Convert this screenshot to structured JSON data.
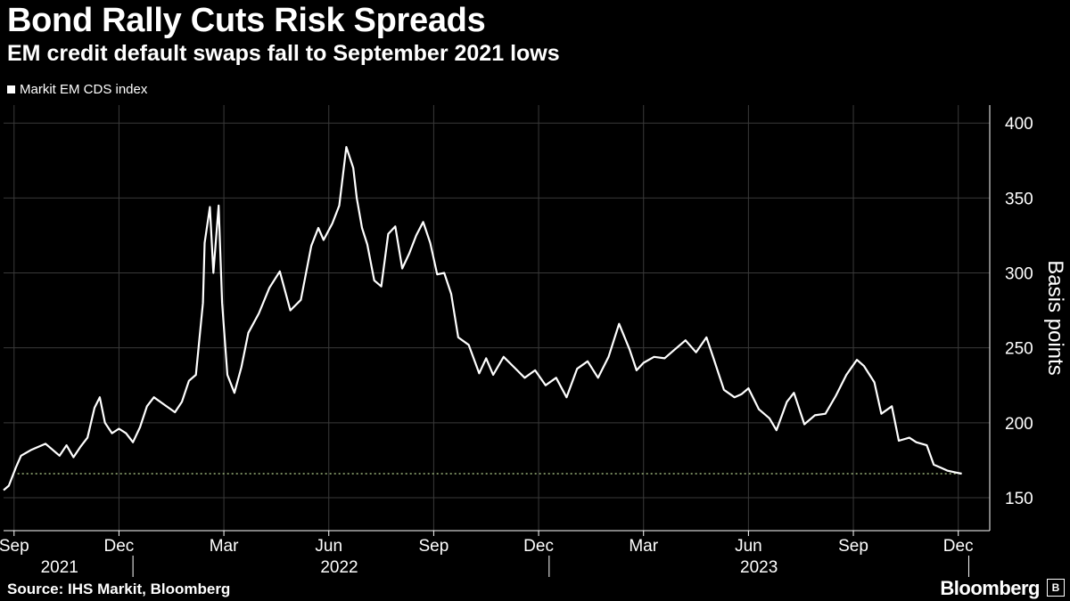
{
  "chart_data": {
    "type": "line",
    "title": "Bond Rally Cuts Risk Spreads",
    "subtitle": "EM credit default swaps fall to September 2021 lows",
    "legend": [
      "Markit EM CDS index"
    ],
    "ylabel": "Basis points",
    "ylim": [
      128,
      412
    ],
    "yticks": [
      150,
      200,
      250,
      300,
      350,
      400
    ],
    "xlim": [
      0,
      28.2
    ],
    "xticks": [
      {
        "x": 0.3,
        "label": "Sep"
      },
      {
        "x": 3.3,
        "label": "Dec"
      },
      {
        "x": 6.3,
        "label": "Mar"
      },
      {
        "x": 9.3,
        "label": "Jun"
      },
      {
        "x": 12.3,
        "label": "Sep"
      },
      {
        "x": 15.3,
        "label": "Dec"
      },
      {
        "x": 18.3,
        "label": "Mar"
      },
      {
        "x": 21.3,
        "label": "Jun"
      },
      {
        "x": 24.3,
        "label": "Sep"
      },
      {
        "x": 27.3,
        "label": "Dec"
      }
    ],
    "years": [
      {
        "center": 1.6,
        "label": "2021"
      },
      {
        "center": 9.6,
        "label": "2022"
      },
      {
        "center": 21.6,
        "label": "2023"
      }
    ],
    "year_separators": [
      3.7,
      15.6,
      27.6
    ],
    "reference_line": {
      "value": 166,
      "style": "dotted"
    },
    "series": [
      {
        "name": "Markit EM CDS index",
        "x": [
          0,
          0.15,
          0.35,
          0.5,
          0.8,
          1.0,
          1.2,
          1.4,
          1.6,
          1.8,
          2.0,
          2.2,
          2.4,
          2.6,
          2.75,
          2.9,
          3.1,
          3.3,
          3.5,
          3.7,
          3.9,
          4.1,
          4.3,
          4.6,
          4.9,
          5.1,
          5.3,
          5.5,
          5.7,
          5.75,
          5.9,
          6.0,
          6.15,
          6.25,
          6.4,
          6.6,
          6.8,
          7.0,
          7.3,
          7.6,
          7.9,
          8.2,
          8.5,
          8.8,
          9.0,
          9.15,
          9.4,
          9.6,
          9.8,
          10.0,
          10.1,
          10.25,
          10.4,
          10.6,
          10.8,
          11.0,
          11.2,
          11.4,
          11.6,
          11.8,
          12.0,
          12.2,
          12.4,
          12.6,
          12.8,
          13.0,
          13.3,
          13.6,
          13.8,
          14.0,
          14.3,
          14.6,
          14.9,
          15.2,
          15.5,
          15.8,
          16.1,
          16.4,
          16.7,
          17.0,
          17.3,
          17.6,
          17.9,
          18.1,
          18.3,
          18.6,
          18.9,
          19.2,
          19.5,
          19.8,
          20.1,
          20.3,
          20.6,
          20.9,
          21.1,
          21.3,
          21.6,
          21.9,
          22.1,
          22.4,
          22.6,
          22.9,
          23.2,
          23.5,
          23.8,
          24.1,
          24.4,
          24.6,
          24.9,
          25.1,
          25.4,
          25.6,
          25.9,
          26.1,
          26.4,
          26.6,
          26.8,
          27.0,
          27.2,
          27.4
        ],
        "values": [
          155,
          158,
          170,
          178,
          182,
          184,
          186,
          182,
          178,
          185,
          177,
          184,
          190,
          210,
          217,
          200,
          193,
          196,
          193,
          187,
          197,
          211,
          217,
          212,
          207,
          214,
          228,
          232,
          280,
          320,
          344,
          300,
          345,
          280,
          232,
          220,
          237,
          260,
          273,
          290,
          301,
          275,
          282,
          318,
          330,
          322,
          333,
          345,
          384,
          370,
          350,
          330,
          319,
          295,
          291,
          326,
          331,
          303,
          313,
          325,
          334,
          320,
          299,
          300,
          286,
          257,
          252,
          233,
          243,
          232,
          244,
          237,
          230,
          235,
          225,
          230,
          217,
          236,
          241,
          230,
          244,
          266,
          249,
          235,
          240,
          244,
          243,
          249,
          255,
          247,
          257,
          243,
          222,
          217,
          219,
          223,
          209,
          203,
          195,
          214,
          220,
          199,
          205,
          206,
          218,
          232,
          242,
          238,
          227,
          206,
          211,
          188,
          190,
          187,
          185,
          172,
          170,
          168,
          167,
          166
        ]
      }
    ]
  },
  "footer": {
    "source": "Source: IHS Markit, Bloomberg",
    "brand": "Bloomberg",
    "brand_mark": "B"
  },
  "colors": {
    "background": "#000000",
    "line": "#ffffff",
    "grid": "#3a3a3a",
    "reference": "#9ab37a"
  }
}
